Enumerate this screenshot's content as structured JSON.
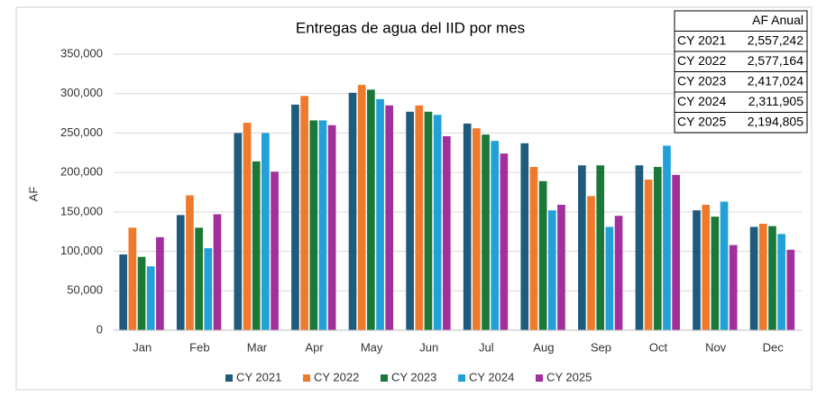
{
  "chart_data": {
    "type": "bar",
    "title": "Entregas de agua del IID por mes",
    "y_label": "AF",
    "categories": [
      "Jan",
      "Feb",
      "Mar",
      "Apr",
      "May",
      "Jun",
      "Jul",
      "Aug",
      "Sep",
      "Oct",
      "Nov",
      "Dec"
    ],
    "series": [
      {
        "name": "CY 2021",
        "color": "#1f5b7c",
        "values": [
          96000,
          146000,
          250000,
          286000,
          301000,
          277000,
          262000,
          237000,
          209000,
          209000,
          152000,
          131000
        ]
      },
      {
        "name": "CY 2022",
        "color": "#f07a2c",
        "values": [
          130000,
          171000,
          263000,
          297000,
          311000,
          285000,
          256000,
          207000,
          170000,
          191000,
          159000,
          135000
        ]
      },
      {
        "name": "CY 2023",
        "color": "#1a7838",
        "values": [
          93000,
          130000,
          214000,
          266000,
          305000,
          277000,
          248000,
          189000,
          209000,
          207000,
          144000,
          132000
        ]
      },
      {
        "name": "CY 2024",
        "color": "#22a0d8",
        "values": [
          81000,
          104000,
          250000,
          266000,
          293000,
          273000,
          240000,
          152000,
          131000,
          234000,
          163000,
          122000
        ]
      },
      {
        "name": "CY 2025",
        "color": "#a2309c",
        "values": [
          118000,
          147000,
          201000,
          260000,
          285000,
          246000,
          224000,
          159000,
          145000,
          197000,
          108000,
          102000
        ]
      }
    ],
    "ylim": [
      0,
      350000
    ],
    "yticks": [
      0,
      {
        "value": 50000,
        "label": "50,000"
      },
      {
        "value": 100000,
        "label": "100,000"
      },
      {
        "value": 150000,
        "label": "150,000"
      },
      {
        "value": 200000,
        "label": "200,000"
      },
      {
        "value": 250000,
        "label": "250,000"
      },
      {
        "value": 300000,
        "label": "300,000"
      },
      {
        "value": 350000,
        "label": "350,000"
      }
    ],
    "grid": true,
    "legend": "bottom"
  },
  "table": {
    "header": "AF Anual",
    "rows": [
      [
        "CY 2021",
        "2,557,242"
      ],
      [
        "CY 2022",
        "2,577,164"
      ],
      [
        "CY 2023",
        "2,417,024"
      ],
      [
        "CY 2024",
        "2,311,905"
      ],
      [
        "CY 2025",
        "2,194,805"
      ]
    ]
  }
}
